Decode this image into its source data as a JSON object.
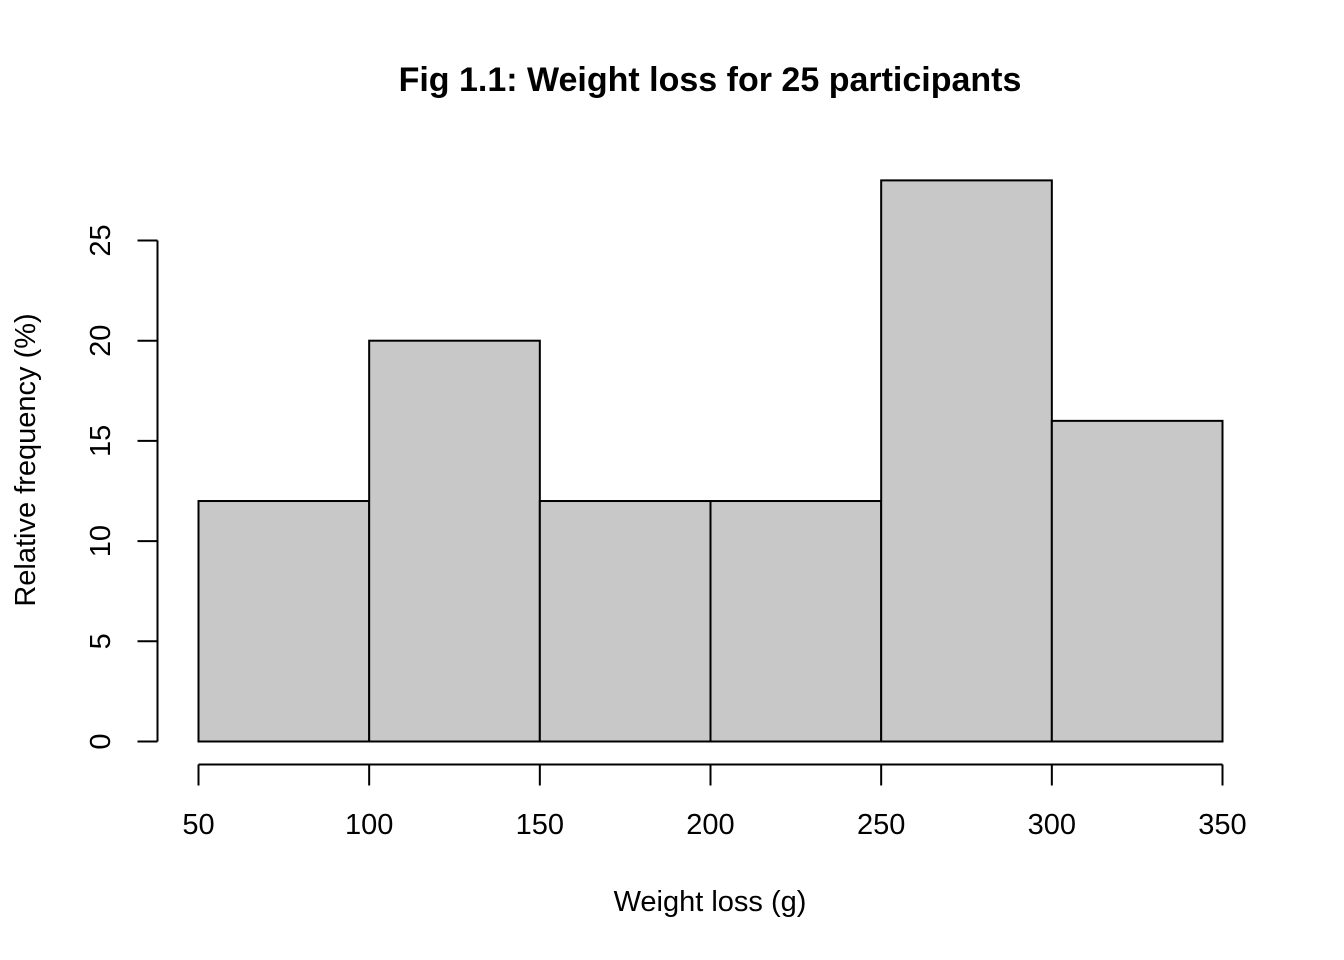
{
  "chart_data": {
    "type": "bar",
    "title": "Fig 1.1: Weight loss for 25 participants",
    "xlabel": "Weight loss (g)",
    "ylabel": "Relative frequency (%)",
    "bins": [
      {
        "from": 50,
        "to": 100,
        "value": 12
      },
      {
        "from": 100,
        "to": 150,
        "value": 20
      },
      {
        "from": 150,
        "to": 200,
        "value": 12
      },
      {
        "from": 200,
        "to": 250,
        "value": 12
      },
      {
        "from": 250,
        "to": 300,
        "value": 28
      },
      {
        "from": 300,
        "to": 350,
        "value": 16
      }
    ],
    "xlim": [
      50,
      350
    ],
    "ylim": [
      0,
      28
    ],
    "x_ticks": [
      50,
      100,
      150,
      200,
      250,
      300,
      350
    ],
    "y_ticks": [
      0,
      5,
      10,
      15,
      20,
      25
    ],
    "x_tick_labels": [
      "50",
      "100",
      "150",
      "200",
      "250",
      "300",
      "350"
    ],
    "y_tick_labels": [
      "0",
      "5",
      "10",
      "15",
      "20",
      "25"
    ],
    "grid": false,
    "bar_color": "#c8c8c8",
    "edge_color": "#000000"
  }
}
